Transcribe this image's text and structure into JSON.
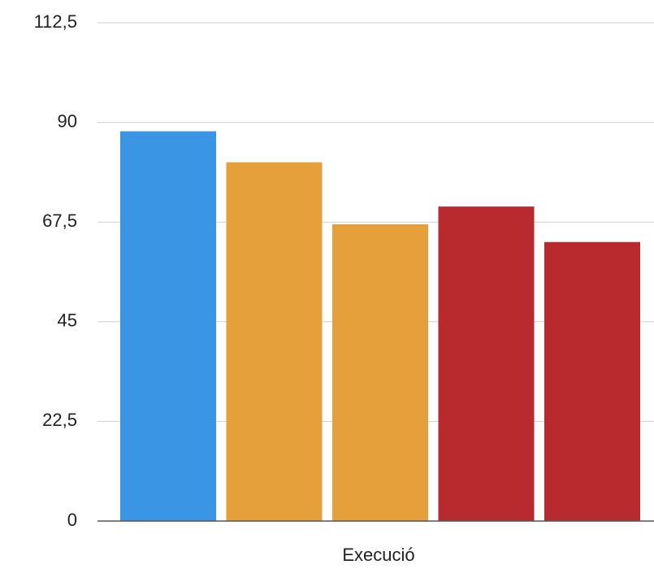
{
  "chart_data": {
    "type": "bar",
    "xlabel": "Execució",
    "values": [
      88,
      81,
      67,
      71,
      63
    ],
    "colors": [
      "#3a95e4",
      "#e5a03c",
      "#e5a03c",
      "#b82a2e",
      "#b82a2e"
    ],
    "ylim": [
      0,
      112.5
    ],
    "yticks": [
      0,
      {
        "value": 22.5,
        "label": "22,5"
      },
      45,
      {
        "value": 67.5,
        "label": "67,5"
      },
      90,
      {
        "value": 112.5,
        "label": "112,5"
      }
    ],
    "grid": true
  }
}
